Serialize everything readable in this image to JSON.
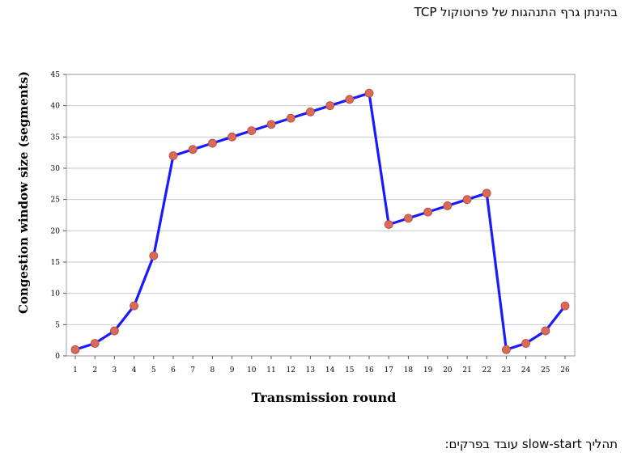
{
  "header": {
    "title": "בהינתן גרף התנהגות של פרוטוקול TCP"
  },
  "footer": {
    "text": "תהליך  slow-start עובד בפרקים:"
  },
  "chart_data": {
    "type": "line",
    "xlabel": "Transmission round",
    "ylabel": "Congestion window size (segments)",
    "ylim": [
      0,
      45
    ],
    "yticks": [
      0,
      5,
      10,
      15,
      20,
      25,
      30,
      35,
      40,
      45
    ],
    "x": [
      1,
      2,
      3,
      4,
      5,
      6,
      7,
      8,
      9,
      10,
      11,
      12,
      13,
      14,
      15,
      16,
      17,
      18,
      19,
      20,
      21,
      22,
      23,
      24,
      25,
      26
    ],
    "series": [
      {
        "values": [
          1,
          2,
          4,
          8,
          16,
          32,
          33,
          34,
          35,
          36,
          37,
          38,
          39,
          40,
          41,
          42,
          21,
          22,
          23,
          24,
          25,
          26,
          1,
          2,
          4,
          8
        ]
      }
    ],
    "grid": true,
    "colors": {
      "line": "#1a1aff",
      "marker": "#d96a5a",
      "marker_edge": "#b04a3a",
      "grid": "#c8c8c8"
    }
  }
}
